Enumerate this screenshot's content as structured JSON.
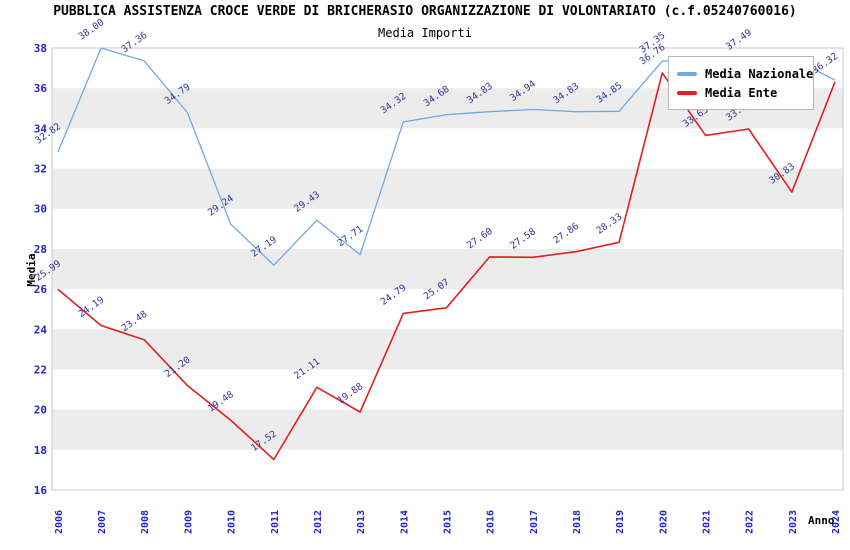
{
  "window": {
    "title": "PUBBLICA ASSISTENZA CROCE VERDE DI BRICHERASIO ORGANIZZAZIONE DI VOLONTARIATO (c.f.05240760016)"
  },
  "chart_data": {
    "type": "line",
    "title": "PUBBLICA ASSISTENZA CROCE VERDE DI BRICHERASIO ORGANIZZAZIONE DI VOLONTARIATO (c.f.05240760016)",
    "subtitle": "Media Importi",
    "xlabel": "Anno",
    "ylabel": "Media",
    "x": [
      "2006",
      "2007",
      "2008",
      "2009",
      "2010",
      "2011",
      "2012",
      "2013",
      "2014",
      "2015",
      "2016",
      "2017",
      "2018",
      "2019",
      "2020",
      "2021",
      "2022",
      "2023",
      "2024"
    ],
    "series": [
      {
        "name": "Media Nazionale",
        "color": "#72A9E2",
        "line_width": 1.3,
        "values": [
          32.82,
          38.0,
          37.36,
          34.79,
          29.24,
          27.19,
          29.43,
          27.71,
          34.32,
          34.68,
          34.83,
          34.94,
          34.83,
          34.85,
          37.35,
          37.46,
          37.49,
          37.5,
          36.4
        ],
        "point_labels": [
          "32.82",
          "38.00",
          "37.36",
          "34.79",
          "29.24",
          "27.19",
          "29.43",
          "27.71",
          "34.32",
          "34.68",
          "34.83",
          "34.94",
          "34.83",
          "34.85",
          "37.35",
          "",
          "37.49",
          "",
          ""
        ]
      },
      {
        "name": "Media Ente",
        "color": "#E02020",
        "line_width": 1.6,
        "values": [
          25.99,
          24.19,
          23.48,
          21.2,
          19.48,
          17.52,
          21.11,
          19.88,
          24.79,
          25.07,
          27.6,
          27.58,
          27.86,
          28.33,
          36.76,
          33.65,
          33.97,
          30.83,
          36.32
        ],
        "point_labels": [
          "25.99",
          "24.19",
          "23.48",
          "21.20",
          "19.48",
          "17.52",
          "21.11",
          "19.88",
          "24.79",
          "25.07",
          "27.60",
          "27.58",
          "27.86",
          "28.33",
          "36.76",
          "33.65",
          "33.97",
          "30.83",
          "36.32"
        ]
      }
    ],
    "ylim": [
      16,
      38
    ],
    "y_ticks": [
      "38",
      "36",
      "34",
      "32",
      "30",
      "28",
      "26",
      "24",
      "22",
      "20",
      "18",
      "16"
    ],
    "gray_bands": [
      [
        18,
        20
      ],
      [
        22,
        24
      ],
      [
        26,
        28
      ],
      [
        30,
        32
      ],
      [
        34,
        36
      ]
    ],
    "legend_position": "upper right",
    "grid": false,
    "colors": {
      "band": "#ECECEC",
      "plot_border": "#C9C9C9",
      "tick_text": "#2323CC",
      "point_label_text": "#333399",
      "axis_title_text": "#000000"
    }
  }
}
